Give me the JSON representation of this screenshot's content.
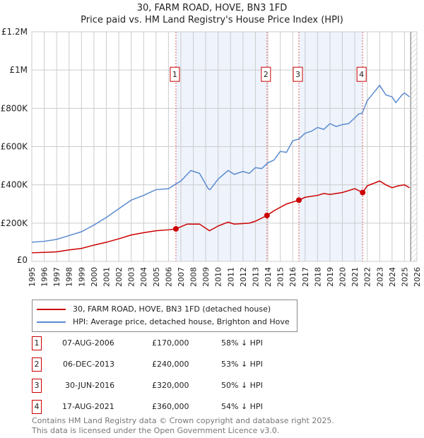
{
  "title": "30, FARM ROAD, HOVE, BN3 1FD",
  "subtitle": "Price paid vs. HM Land Registry's House Price Index (HPI)",
  "legend": [
    "30, FARM ROAD, HOVE, BN3 1FD (detached house)",
    "HPI: Average price, detached house, Brighton and Hove"
  ],
  "transactions": [
    {
      "n": "1",
      "date": "07-AUG-2006",
      "price": "£170,000",
      "pct": "58% ↓ HPI"
    },
    {
      "n": "2",
      "date": "06-DEC-2013",
      "price": "£240,000",
      "pct": "53% ↓ HPI"
    },
    {
      "n": "3",
      "date": "30-JUN-2016",
      "price": "£320,000",
      "pct": "50% ↓ HPI"
    },
    {
      "n": "4",
      "date": "17-AUG-2021",
      "price": "£360,000",
      "pct": "54% ↓ HPI"
    }
  ],
  "footer": [
    "Contains HM Land Registry data © Crown copyright and database right 2025.",
    "This data is licensed under the Open Government Licence v3.0."
  ],
  "colors": {
    "price": "#cc0000",
    "hpi": "#5b8bd0",
    "shade": "#eef3fc"
  },
  "chart_data": {
    "type": "line",
    "xlim": [
      1995,
      2026
    ],
    "ylim": [
      0,
      1200000
    ],
    "yticks": [
      {
        "v": 0,
        "label": "£0"
      },
      {
        "v": 200000,
        "label": "£200K"
      },
      {
        "v": 400000,
        "label": "£400K"
      },
      {
        "v": 600000,
        "label": "£600K"
      },
      {
        "v": 800000,
        "label": "£800K"
      },
      {
        "v": 1000000,
        "label": "£1M"
      },
      {
        "v": 1200000,
        "label": "£1.2M"
      }
    ],
    "xticks": [
      "1995",
      "1996",
      "1997",
      "1998",
      "1999",
      "2000",
      "2001",
      "2002",
      "2003",
      "2004",
      "2005",
      "2006",
      "2007",
      "2008",
      "2009",
      "2010",
      "2011",
      "2012",
      "2013",
      "2014",
      "2015",
      "2016",
      "2017",
      "2018",
      "2019",
      "2020",
      "2021",
      "2022",
      "2023",
      "2024",
      "2025",
      "2026"
    ],
    "shaded_ranges": [
      [
        2006.6,
        2013.93
      ],
      [
        2016.5,
        2021.63
      ]
    ],
    "forecast_from": 2025.5,
    "markers": [
      {
        "label": "1",
        "x": 2006.6,
        "y": 170000
      },
      {
        "label": "2",
        "x": 2013.93,
        "y": 240000
      },
      {
        "label": "3",
        "x": 2016.5,
        "y": 320000
      },
      {
        "label": "4",
        "x": 2021.63,
        "y": 360000
      }
    ],
    "series": [
      {
        "name": "HPI",
        "x": [
          1995,
          1996,
          1997,
          1998,
          1999,
          2000,
          2001,
          2002,
          2003,
          2004,
          2005,
          2006,
          2006.6,
          2007,
          2007.8,
          2008.5,
          2009.2,
          2009.35,
          2010,
          2010.8,
          2011.3,
          2012,
          2012.5,
          2013,
          2013.5,
          2014,
          2014.5,
          2015,
          2015.5,
          2016,
          2016.5,
          2017,
          2017.5,
          2018,
          2018.5,
          2019,
          2019.5,
          2020,
          2020.5,
          2021,
          2021.3,
          2021.6,
          2022,
          2022.5,
          2023,
          2023.5,
          2024,
          2024.3,
          2024.8,
          2025,
          2025.4
        ],
        "y": [
          100000,
          105000,
          115000,
          135000,
          155000,
          190000,
          230000,
          275000,
          320000,
          345000,
          375000,
          380000,
          405000,
          420000,
          475000,
          460000,
          380000,
          375000,
          430000,
          475000,
          455000,
          470000,
          460000,
          490000,
          485000,
          515000,
          530000,
          575000,
          570000,
          630000,
          640000,
          670000,
          680000,
          700000,
          690000,
          720000,
          705000,
          715000,
          720000,
          750000,
          770000,
          775000,
          840000,
          880000,
          920000,
          870000,
          860000,
          830000,
          870000,
          880000,
          860000
        ]
      },
      {
        "name": "Price",
        "x": [
          1995,
          1996,
          1997,
          1998,
          1999,
          2000,
          2001,
          2002,
          2003,
          2004,
          2005,
          2006,
          2006.6,
          2007.5,
          2008.5,
          2009.3,
          2010,
          2010.8,
          2011.3,
          2012.5,
          2013,
          2013.93,
          2014.5,
          2015.5,
          2016.5,
          2017,
          2018,
          2018.5,
          2019,
          2020,
          2021,
          2021.63,
          2022,
          2023,
          2023.5,
          2024,
          2024.5,
          2025,
          2025.4
        ],
        "y": [
          45000,
          47000,
          50000,
          60000,
          68000,
          85000,
          100000,
          118000,
          138000,
          150000,
          160000,
          165000,
          170000,
          195000,
          195000,
          160000,
          185000,
          205000,
          195000,
          200000,
          210000,
          240000,
          265000,
          300000,
          320000,
          335000,
          345000,
          355000,
          350000,
          360000,
          380000,
          360000,
          395000,
          420000,
          400000,
          385000,
          395000,
          400000,
          385000
        ]
      }
    ]
  }
}
